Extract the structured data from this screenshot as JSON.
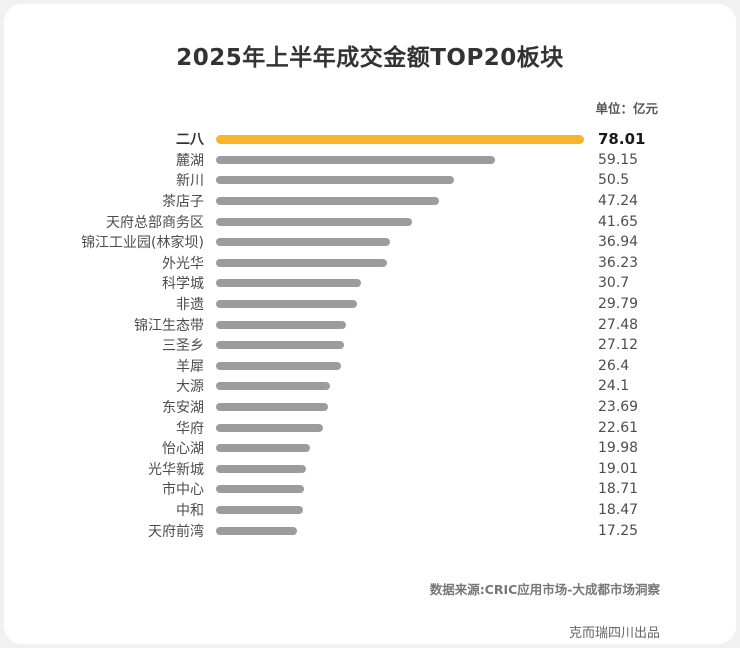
{
  "title": "2025年上半年成交金额TOP20板块",
  "unit_label": "单位：亿元",
  "chart_data": {
    "type": "bar",
    "orientation": "horizontal",
    "title": "2025年上半年成交金额TOP20板块",
    "unit": "亿元",
    "categories": [
      "二八",
      "麓湖",
      "新川",
      "茶店子",
      "天府总部商务区",
      "锦江工业园(林家坝)",
      "外光华",
      "科学城",
      "非遗",
      "锦江生态带",
      "三圣乡",
      "羊犀",
      "大源",
      "东安湖",
      "华府",
      "怡心湖",
      "光华新城",
      "市中心",
      "中和",
      "天府前湾"
    ],
    "values": [
      78.01,
      59.15,
      50.5,
      47.24,
      41.65,
      36.94,
      36.23,
      30.7,
      29.79,
      27.48,
      27.12,
      26.4,
      24.1,
      23.69,
      22.61,
      19.98,
      19.01,
      18.71,
      18.47,
      17.25
    ],
    "xlim": [
      0,
      78.01
    ],
    "highlight_index": 0,
    "highlight_color": "#F7B52D",
    "bar_color": "#9C9C9C",
    "legend": "none",
    "grid": false
  },
  "footer": {
    "source": "数据来源:CRIC应用市场-大成都市场洞察",
    "credit": "克而瑞四川出品"
  }
}
